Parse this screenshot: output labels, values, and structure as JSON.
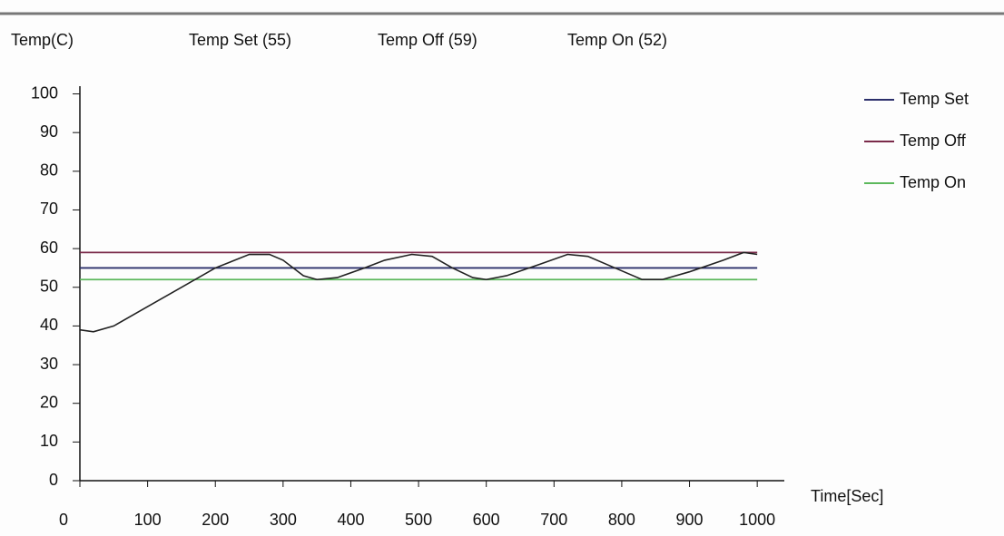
{
  "chart_data": {
    "type": "line",
    "y_label": "Temp(C)",
    "x_label": "Time[Sec]",
    "header_labels": [
      "Temp Set  (55)",
      "Temp Off  (59)",
      "Temp On  (52)"
    ],
    "xlim": [
      0,
      1040
    ],
    "ylim": [
      0,
      102
    ],
    "xticks": [
      0,
      100,
      200,
      300,
      400,
      500,
      600,
      700,
      800,
      900,
      1000
    ],
    "yticks": [
      0,
      10,
      20,
      30,
      40,
      50,
      60,
      70,
      80,
      90,
      100
    ],
    "series": [
      {
        "name": "Temp Set",
        "color": "#2b2f6b",
        "x": [
          0,
          1000
        ],
        "values": [
          55,
          55
        ]
      },
      {
        "name": "Temp Off",
        "color": "#7a2a4a",
        "x": [
          0,
          1000
        ],
        "values": [
          59,
          59
        ]
      },
      {
        "name": "Temp On",
        "color": "#5cb85c",
        "x": [
          0,
          1000
        ],
        "values": [
          52,
          52
        ]
      }
    ],
    "temperature": {
      "color": "#222222",
      "x": [
        0,
        20,
        50,
        100,
        150,
        200,
        250,
        280,
        300,
        330,
        350,
        380,
        420,
        450,
        490,
        520,
        550,
        580,
        600,
        630,
        680,
        720,
        750,
        790,
        830,
        860,
        900,
        950,
        980,
        1000
      ],
      "values": [
        39,
        38.5,
        40,
        45,
        50,
        55,
        58.5,
        58.5,
        57,
        53,
        52,
        52.5,
        55,
        57,
        58.5,
        58,
        55,
        52.5,
        52,
        53,
        56,
        58.5,
        58,
        55,
        52,
        52,
        54,
        57,
        59,
        58.5
      ]
    }
  }
}
